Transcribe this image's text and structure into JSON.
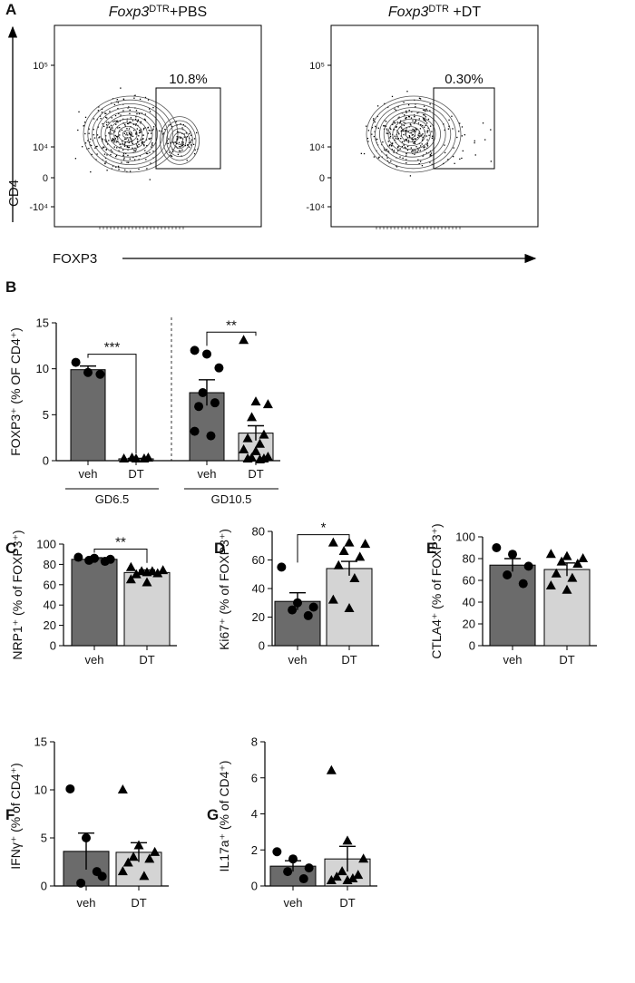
{
  "flow_panel": {
    "panel": "A",
    "y_axis_label": "CD4",
    "x_axis_label": "FOXP3",
    "plots": [
      {
        "title_gene": "Foxp3",
        "title_sup": "DTR",
        "title_rest": "+PBS",
        "gate_label": "10.8%",
        "yticks": [
          "10⁵",
          "10⁴",
          "0",
          "-10⁴"
        ]
      },
      {
        "title_gene": "Foxp3",
        "title_sup": "DTR",
        "title_rest": " +DT",
        "gate_label": "0.30%",
        "yticks": [
          "10⁵",
          "10⁴",
          "0",
          "-10⁴"
        ]
      }
    ]
  },
  "chart_data": [
    {
      "type": "bar",
      "panel": "B",
      "ylabel": "FOXP3⁺ (% OF CD4⁺)",
      "ylim": [
        0,
        15
      ],
      "yticks": [
        0,
        5,
        10,
        15
      ],
      "colors": [
        "#6b6b6b",
        "#d4d4d4"
      ],
      "markers": [
        "circle",
        "triangle"
      ],
      "groups": [
        {
          "label": "GD6.5",
          "categories": [
            "veh",
            "DT"
          ],
          "values": [
            9.9,
            0.2
          ],
          "errors": [
            0.4,
            0.05
          ],
          "points": [
            [
              10.7,
              9.6,
              9.4
            ],
            [
              0.2,
              0.2,
              0.3,
              0.3,
              0.2
            ]
          ],
          "significance": "***"
        },
        {
          "label": "GD10.5",
          "categories": [
            "veh",
            "DT"
          ],
          "values": [
            7.4,
            3.0
          ],
          "errors": [
            1.4,
            0.8
          ],
          "points": [
            [
              12.0,
              11.6,
              10.1,
              7.4,
              6.3,
              5.9,
              2.7,
              3.2
            ],
            [
              13.1,
              6.4,
              6.1,
              4.7,
              2.8,
              2.4,
              1.8,
              1.2,
              1.0,
              0.4,
              0.3,
              0.2,
              0.2,
              0.1
            ]
          ],
          "significance": "**"
        }
      ]
    },
    {
      "type": "bar",
      "panel": "C",
      "ylabel": "NRP1⁺ (% of FOXP3⁺)",
      "ylim": [
        0,
        100
      ],
      "yticks": [
        0,
        20,
        40,
        60,
        80,
        100
      ],
      "colors": [
        "#6b6b6b",
        "#d4d4d4"
      ],
      "markers": [
        "circle",
        "triangle"
      ],
      "groups": [
        {
          "categories": [
            "veh",
            "DT"
          ],
          "values": [
            85,
            72
          ],
          "errors": [
            1.5,
            2.5
          ],
          "points": [
            [
              87,
              86,
              85,
              84,
              83
            ],
            [
              77,
              72,
              74,
              73,
              71,
              70,
              73,
              65,
              62
            ]
          ],
          "significance": "**"
        }
      ]
    },
    {
      "type": "bar",
      "panel": "D",
      "ylabel": "Ki67⁺ (% of FOXP3⁺)",
      "ylim": [
        0,
        80
      ],
      "yticks": [
        0,
        20,
        40,
        60,
        80
      ],
      "colors": [
        "#6b6b6b",
        "#d4d4d4"
      ],
      "markers": [
        "circle",
        "triangle"
      ],
      "groups": [
        {
          "categories": [
            "veh",
            "DT"
          ],
          "values": [
            31,
            54
          ],
          "errors": [
            6,
            5
          ],
          "points": [
            [
              55,
              30,
              27,
              25,
              21
            ],
            [
              72,
              72,
              71,
              66,
              62,
              56,
              47,
              32,
              26
            ]
          ],
          "significance": "*"
        }
      ]
    },
    {
      "type": "bar",
      "panel": "E",
      "ylabel": "CTLA4⁺ (% of FOXP3⁺)",
      "ylim": [
        0,
        100
      ],
      "yticks": [
        0,
        20,
        40,
        60,
        80,
        100
      ],
      "colors": [
        "#6b6b6b",
        "#d4d4d4"
      ],
      "markers": [
        "circle",
        "triangle"
      ],
      "groups": [
        {
          "categories": [
            "veh",
            "DT"
          ],
          "values": [
            74,
            70
          ],
          "errors": [
            6,
            6
          ],
          "points": [
            [
              90,
              84,
              73,
              65,
              57
            ],
            [
              84,
              82,
              80,
              77,
              75,
              66,
              62,
              55,
              51
            ]
          ]
        }
      ]
    },
    {
      "type": "bar",
      "panel": "F",
      "ylabel": "IFNγ⁺ (% of CD4⁺)",
      "ylim": [
        0,
        15
      ],
      "yticks": [
        0,
        5,
        10,
        15
      ],
      "colors": [
        "#6b6b6b",
        "#d4d4d4"
      ],
      "markers": [
        "circle",
        "triangle"
      ],
      "groups": [
        {
          "categories": [
            "veh",
            "DT"
          ],
          "values": [
            3.6,
            3.5
          ],
          "errors": [
            1.9,
            1.0
          ],
          "points": [
            [
              10.1,
              5.0,
              1.0,
              0.3,
              1.5
            ],
            [
              10.0,
              4.2,
              3.5,
              3.0,
              2.8,
              2.4,
              1.0,
              1.5
            ]
          ]
        }
      ]
    },
    {
      "type": "bar",
      "panel": "G",
      "ylabel": "IL17a⁺ (% of CD4⁺)",
      "ylim": [
        0,
        8
      ],
      "yticks": [
        0,
        2,
        4,
        6,
        8
      ],
      "colors": [
        "#6b6b6b",
        "#d4d4d4"
      ],
      "markers": [
        "circle",
        "triangle"
      ],
      "groups": [
        {
          "categories": [
            "veh",
            "DT"
          ],
          "values": [
            1.1,
            1.5
          ],
          "errors": [
            0.3,
            0.7
          ],
          "points": [
            [
              1.9,
              1.5,
              1.0,
              0.8,
              0.4
            ],
            [
              6.4,
              2.5,
              1.5,
              0.8,
              0.6,
              0.5,
              0.4,
              0.3,
              0.3
            ]
          ]
        }
      ]
    }
  ]
}
